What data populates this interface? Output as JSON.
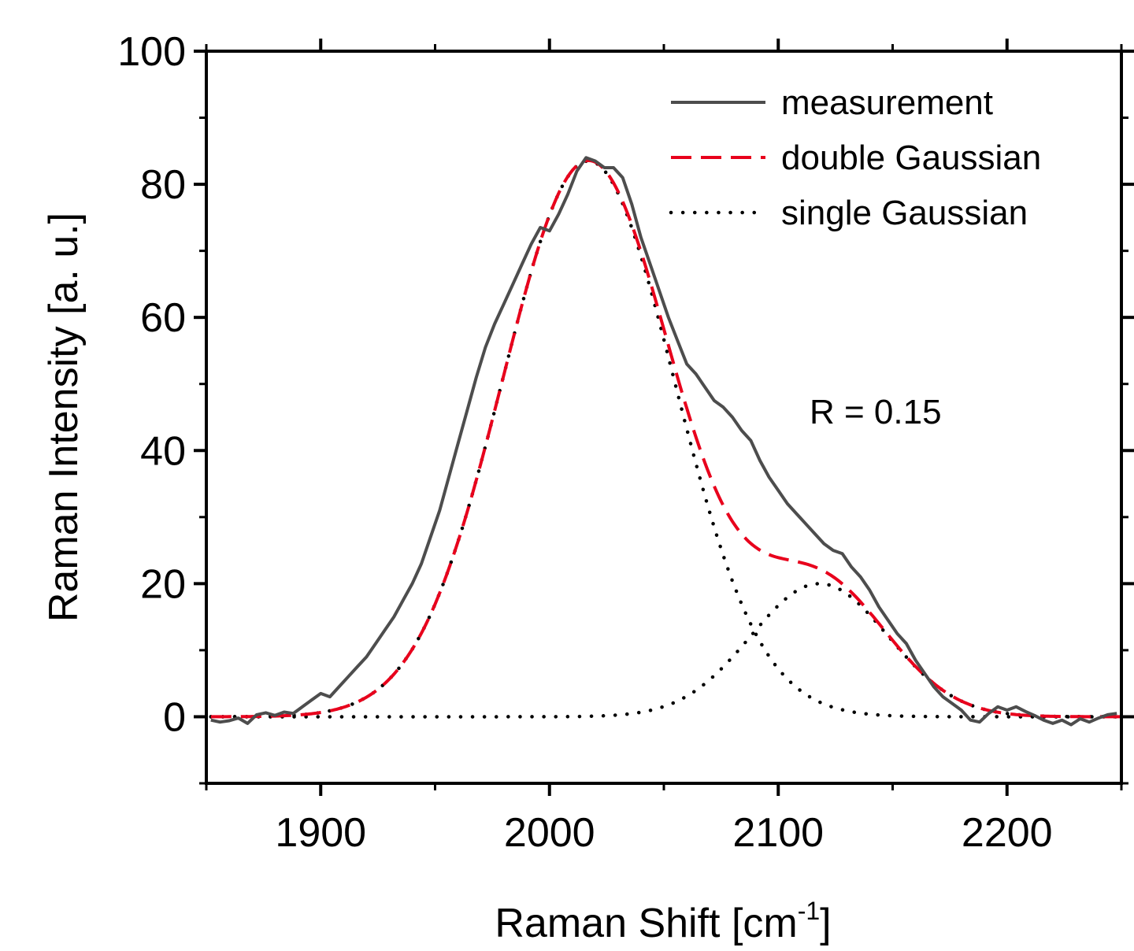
{
  "chart_data": {
    "type": "line",
    "xlabel": "Raman Shift [cm",
    "xlabel_sup": "-1",
    "xlabel_end": "]",
    "ylabel": "Raman Intensity [a. u.]",
    "xlim": [
      1850,
      2250
    ],
    "ylim": [
      -10,
      100
    ],
    "x_ticks": [
      1900,
      2000,
      2100,
      2200
    ],
    "x_tick_labels": [
      "1900",
      "2000",
      "2100",
      "2200"
    ],
    "y_ticks": [
      0,
      20,
      40,
      60,
      80,
      100
    ],
    "y_tick_labels": [
      "0",
      "20",
      "40",
      "60",
      "80",
      "100"
    ],
    "x_minor_step": 50,
    "y_minor_step": 10,
    "grid": false,
    "legend": {
      "position": "top-right",
      "entries": [
        "measurement",
        "double Gaussian",
        "single Gaussian"
      ]
    },
    "annotation": "R = 0.15",
    "series": [
      {
        "name": "measurement",
        "color": "#4d4d4d",
        "style": "solid",
        "x": [
          1852,
          1856,
          1860,
          1864,
          1868,
          1872,
          1876,
          1880,
          1884,
          1888,
          1892,
          1896,
          1900,
          1904,
          1908,
          1912,
          1916,
          1920,
          1924,
          1928,
          1932,
          1936,
          1940,
          1944,
          1948,
          1952,
          1956,
          1960,
          1964,
          1968,
          1972,
          1976,
          1980,
          1984,
          1988,
          1992,
          1996,
          2000,
          2004,
          2008,
          2012,
          2016,
          2020,
          2024,
          2028,
          2032,
          2036,
          2040,
          2044,
          2048,
          2052,
          2056,
          2060,
          2064,
          2068,
          2072,
          2076,
          2080,
          2084,
          2088,
          2092,
          2096,
          2100,
          2104,
          2108,
          2112,
          2116,
          2120,
          2124,
          2128,
          2132,
          2136,
          2140,
          2144,
          2148,
          2152,
          2156,
          2160,
          2164,
          2168,
          2172,
          2176,
          2180,
          2184,
          2188,
          2192,
          2196,
          2200,
          2204,
          2208,
          2212,
          2216,
          2220,
          2224,
          2228,
          2232,
          2236,
          2240,
          2244,
          2248
        ],
        "y": [
          -0.5,
          -0.8,
          -0.6,
          -0.2,
          -1.0,
          0.3,
          0.6,
          0.2,
          0.7,
          0.5,
          1.5,
          2.5,
          3.5,
          3.0,
          4.5,
          6.0,
          7.5,
          9.0,
          11.0,
          13.0,
          15.0,
          17.5,
          20.0,
          23.0,
          27.0,
          31.0,
          36.0,
          41.0,
          46.0,
          51.0,
          55.5,
          59.0,
          62.0,
          65.0,
          68.0,
          71.0,
          73.5,
          73.0,
          75.5,
          78.5,
          82.0,
          84.0,
          83.5,
          82.5,
          82.5,
          81.0,
          77.0,
          72.0,
          68.0,
          64.0,
          60.0,
          56.5,
          53.0,
          51.5,
          49.5,
          47.5,
          46.5,
          45.0,
          43.0,
          41.5,
          38.5,
          36.0,
          34.0,
          32.0,
          30.5,
          29.0,
          27.5,
          26.0,
          25.0,
          24.5,
          22.5,
          21.0,
          19.0,
          16.5,
          14.5,
          12.5,
          11.0,
          8.5,
          6.5,
          4.5,
          3.0,
          2.0,
          1.0,
          -0.5,
          -0.8,
          0.5,
          1.5,
          1.0,
          1.5,
          0.8,
          0.2,
          -0.5,
          -1.0,
          -0.5,
          -1.2,
          -0.3,
          -0.8,
          -0.2,
          0.3,
          0.5
        ]
      },
      {
        "name": "double Gaussian",
        "color": "#e8001c",
        "style": "dashed",
        "components": [
          {
            "amplitude": 83.5,
            "center": 2017,
            "sigma": 37.5
          },
          {
            "amplitude": 20.0,
            "center": 2118,
            "sigma": 30.0
          }
        ]
      },
      {
        "name": "single Gaussian",
        "color": "#000000",
        "style": "dotted",
        "components": [
          {
            "amplitude": 83.5,
            "center": 2017,
            "sigma": 37.5
          },
          {
            "amplitude": 20.0,
            "center": 2118,
            "sigma": 30.0
          }
        ]
      }
    ]
  }
}
